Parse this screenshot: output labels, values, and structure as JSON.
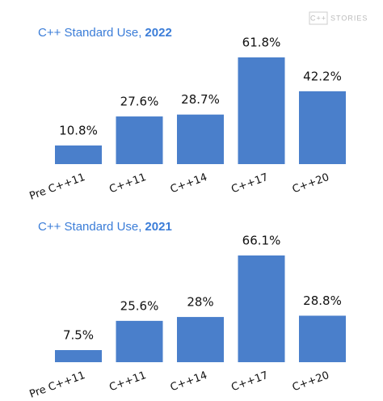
{
  "logo": {
    "mark": "C++",
    "text": "STORIES"
  },
  "chart_data": [
    {
      "type": "bar",
      "title": "C++ Standard Use,",
      "year": "2022",
      "color": "#4a7fcb",
      "categories": [
        "Pre C++11",
        "C++11",
        "C++14",
        "C++17",
        "C++20"
      ],
      "values": [
        10.8,
        27.6,
        28.7,
        61.8,
        42.2
      ],
      "value_labels": [
        "10.8%",
        "27.6%",
        "28.7%",
        "61.8%",
        "42.2%"
      ]
    },
    {
      "type": "bar",
      "title": "C++ Standard Use,",
      "year": "2021",
      "color": "#4a7fcb",
      "categories": [
        "Pre C++11",
        "C++11",
        "C++14",
        "C++17",
        "C++20"
      ],
      "values": [
        7.5,
        25.6,
        28,
        66.1,
        28.8
      ],
      "value_labels": [
        "7.5%",
        "25.6%",
        "28%",
        "66.1%",
        "28.8%"
      ]
    }
  ]
}
